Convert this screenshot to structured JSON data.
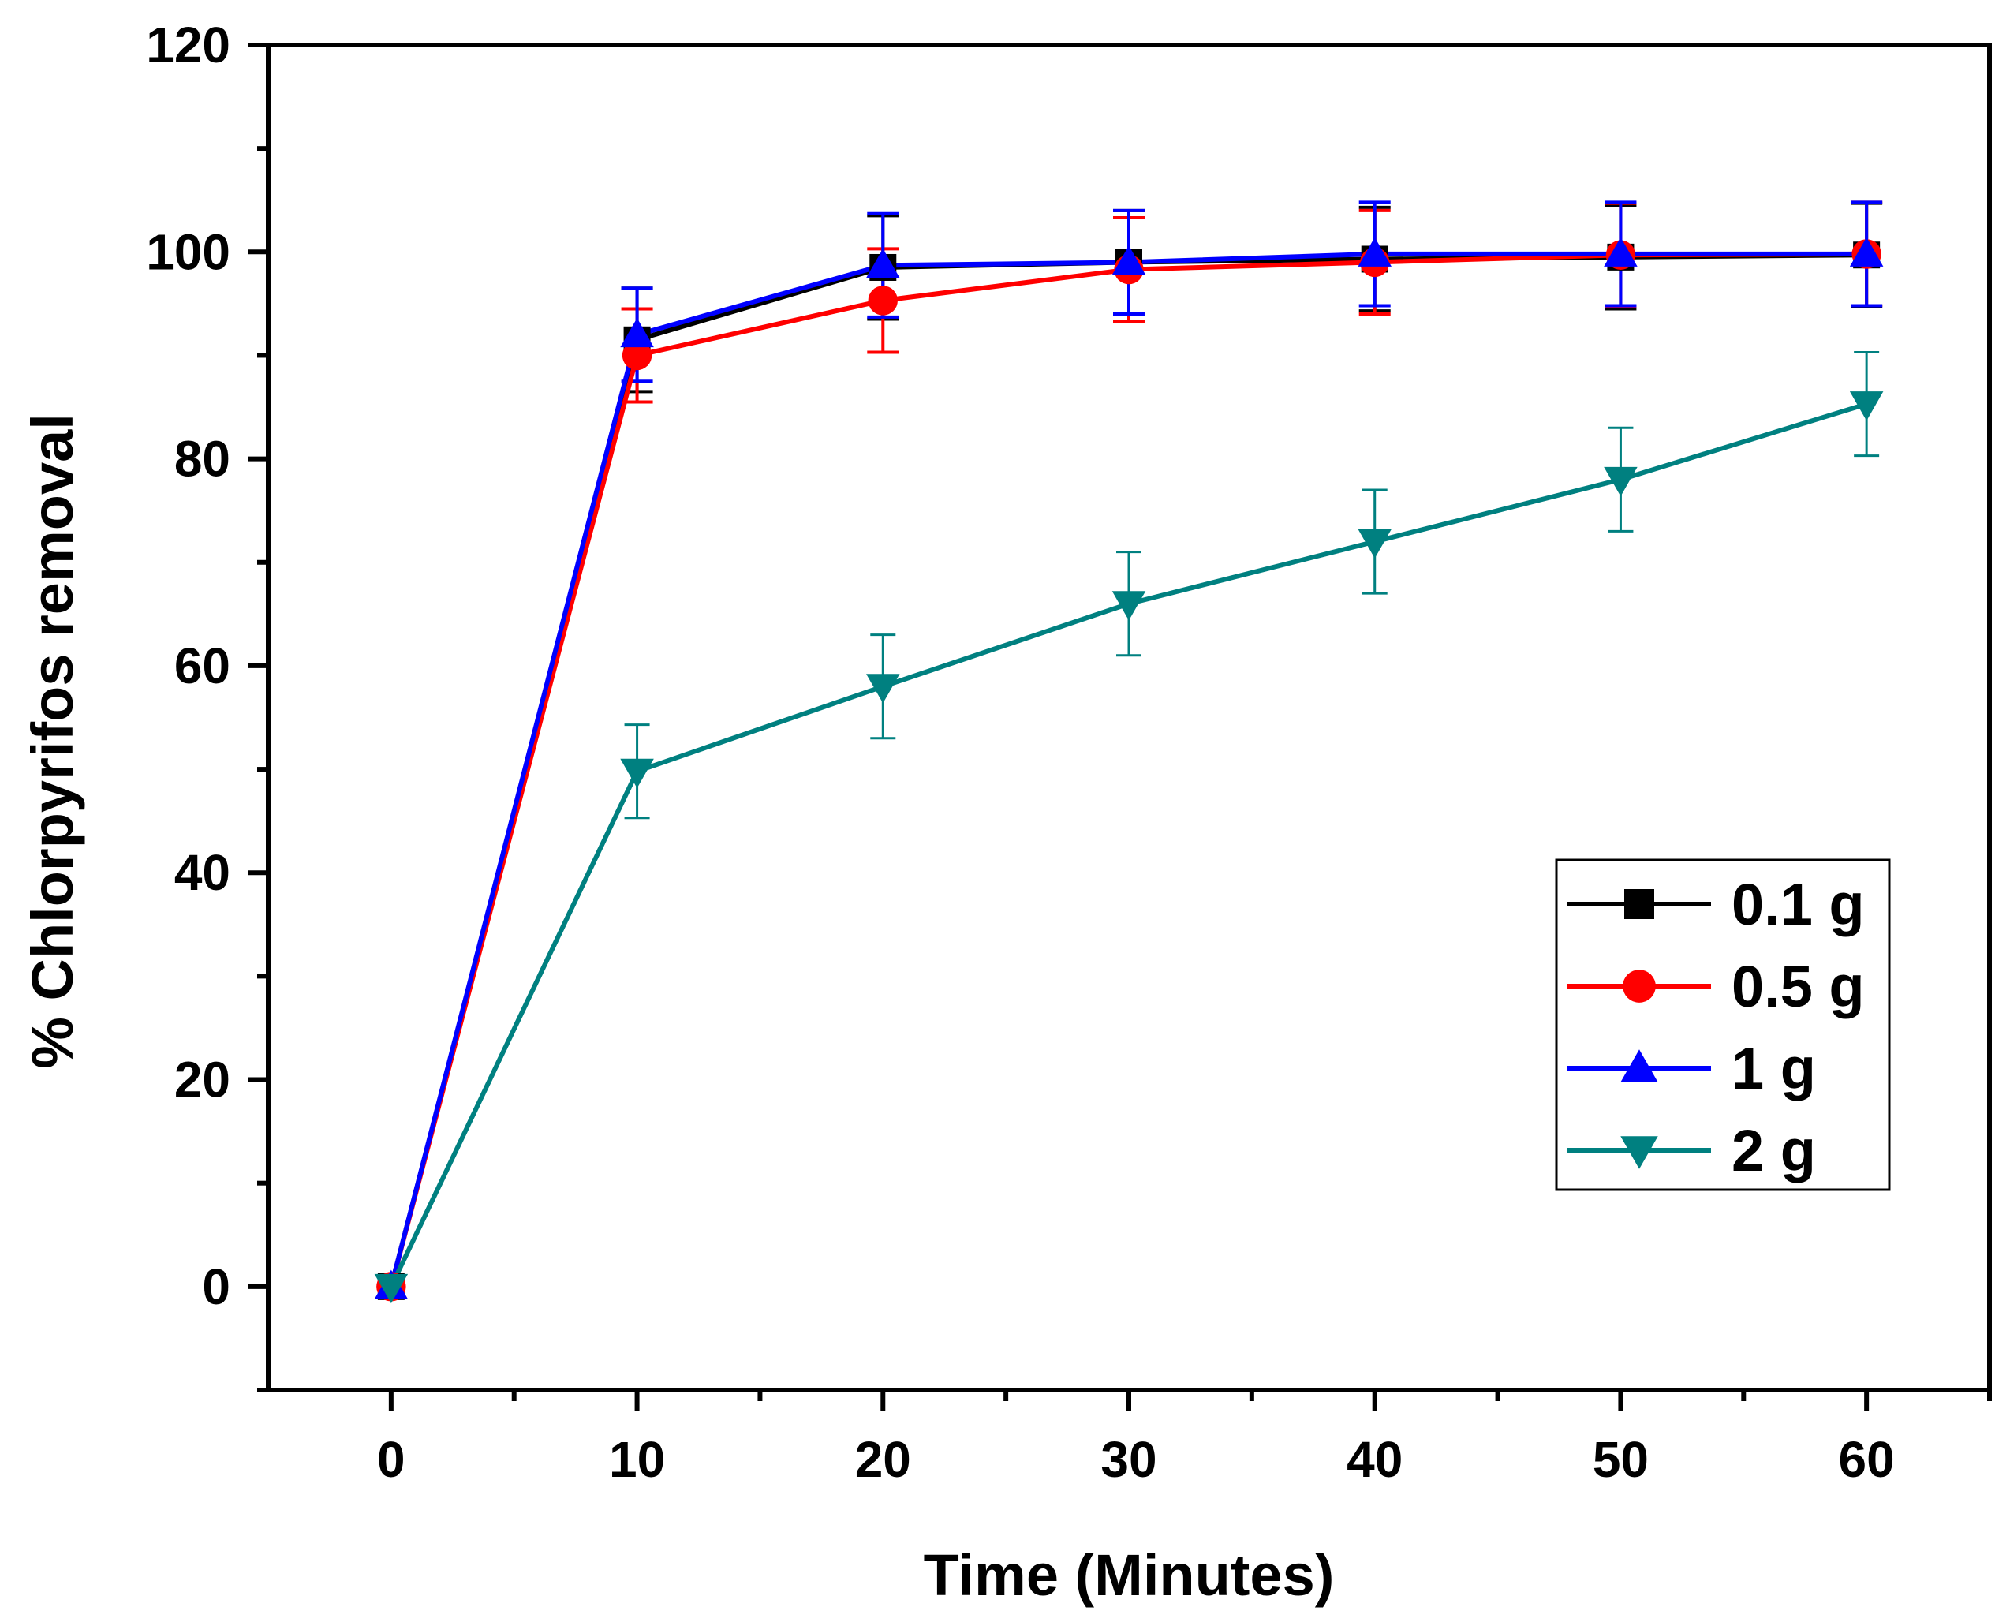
{
  "chart_data": {
    "type": "line",
    "title": "",
    "xlabel": "Time (Minutes)",
    "ylabel": "% Chlorpyrifos removal",
    "xlim": [
      -5,
      65
    ],
    "ylim": [
      -10,
      120
    ],
    "xticks": [
      0,
      10,
      20,
      30,
      40,
      50,
      60
    ],
    "yticks": [
      0,
      20,
      40,
      60,
      80,
      100,
      120
    ],
    "grid": false,
    "legend_position": "lower-right",
    "x": [
      0,
      10,
      20,
      30,
      40,
      50,
      60
    ],
    "series": [
      {
        "name": "0.1 g",
        "color": "#000000",
        "marker": "square",
        "values": [
          0,
          91.5,
          98.5,
          99.0,
          99.3,
          99.5,
          99.7
        ],
        "errors": [
          0,
          5,
          5,
          5,
          5,
          5,
          5
        ]
      },
      {
        "name": "0.5 g",
        "color": "#ff0000",
        "marker": "circle",
        "values": [
          0,
          90.0,
          95.3,
          98.3,
          99.0,
          99.7,
          99.8
        ],
        "errors": [
          0,
          4.5,
          5,
          5,
          5,
          5,
          5
        ]
      },
      {
        "name": "1 g",
        "color": "#0000ff",
        "marker": "triangle-up",
        "values": [
          0,
          92.0,
          98.7,
          99.0,
          99.8,
          99.8,
          99.8
        ],
        "errors": [
          0,
          4.5,
          5,
          5,
          5,
          5,
          5
        ]
      },
      {
        "name": "2 g",
        "color": "#008080",
        "marker": "triangle-down",
        "values": [
          0,
          49.8,
          58.0,
          66.0,
          72.0,
          78.0,
          85.3
        ],
        "errors": [
          0,
          4.5,
          5,
          5,
          5,
          5,
          5
        ]
      }
    ]
  }
}
